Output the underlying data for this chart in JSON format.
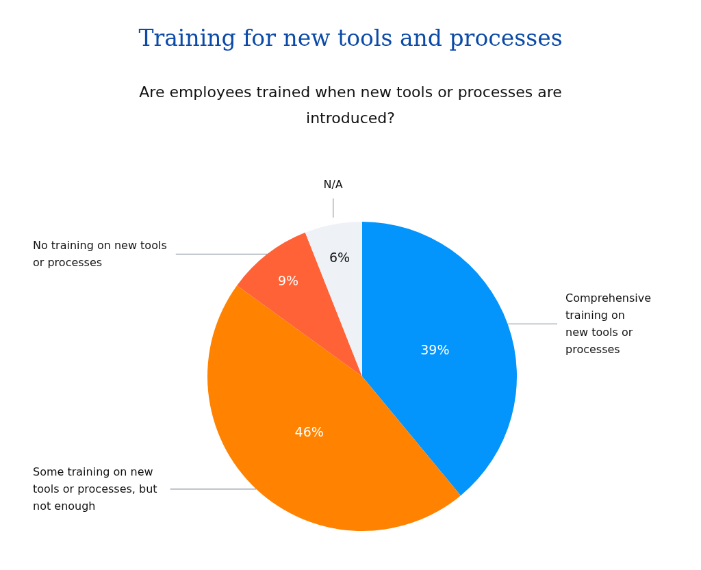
{
  "chart_data": {
    "type": "pie",
    "title": "Training for new tools and processes",
    "subtitle": "Are employees trained when new tools or processes are introduced?",
    "categories": [
      "Comprehensive training on new tools or processes",
      "Some training on new tools or processes, but not enough",
      "No training on new tools or processes",
      "N/A"
    ],
    "values": [
      39,
      46,
      9,
      6
    ],
    "colors": [
      "#0394fc",
      "#ff8200",
      "#ff6236",
      "#eef2f7"
    ],
    "value_labels": [
      "39%",
      "46%",
      "9%",
      "6%"
    ]
  }
}
